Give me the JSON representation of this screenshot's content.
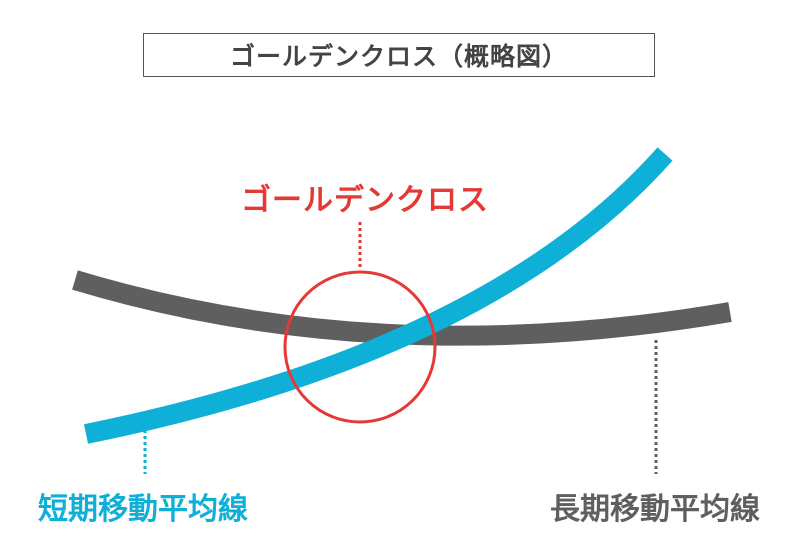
{
  "title": "ゴールデンクロス（概略図）",
  "labels": {
    "golden_cross": "ゴールデンクロス",
    "short_ma": "短期移動平均線",
    "long_ma": "長期移動平均線"
  },
  "colors": {
    "short_ma": "#0fb0d8",
    "long_ma": "#5f5f5f",
    "golden_cross": "#e53935",
    "title_text": "#444444",
    "title_border": "#555555"
  }
}
